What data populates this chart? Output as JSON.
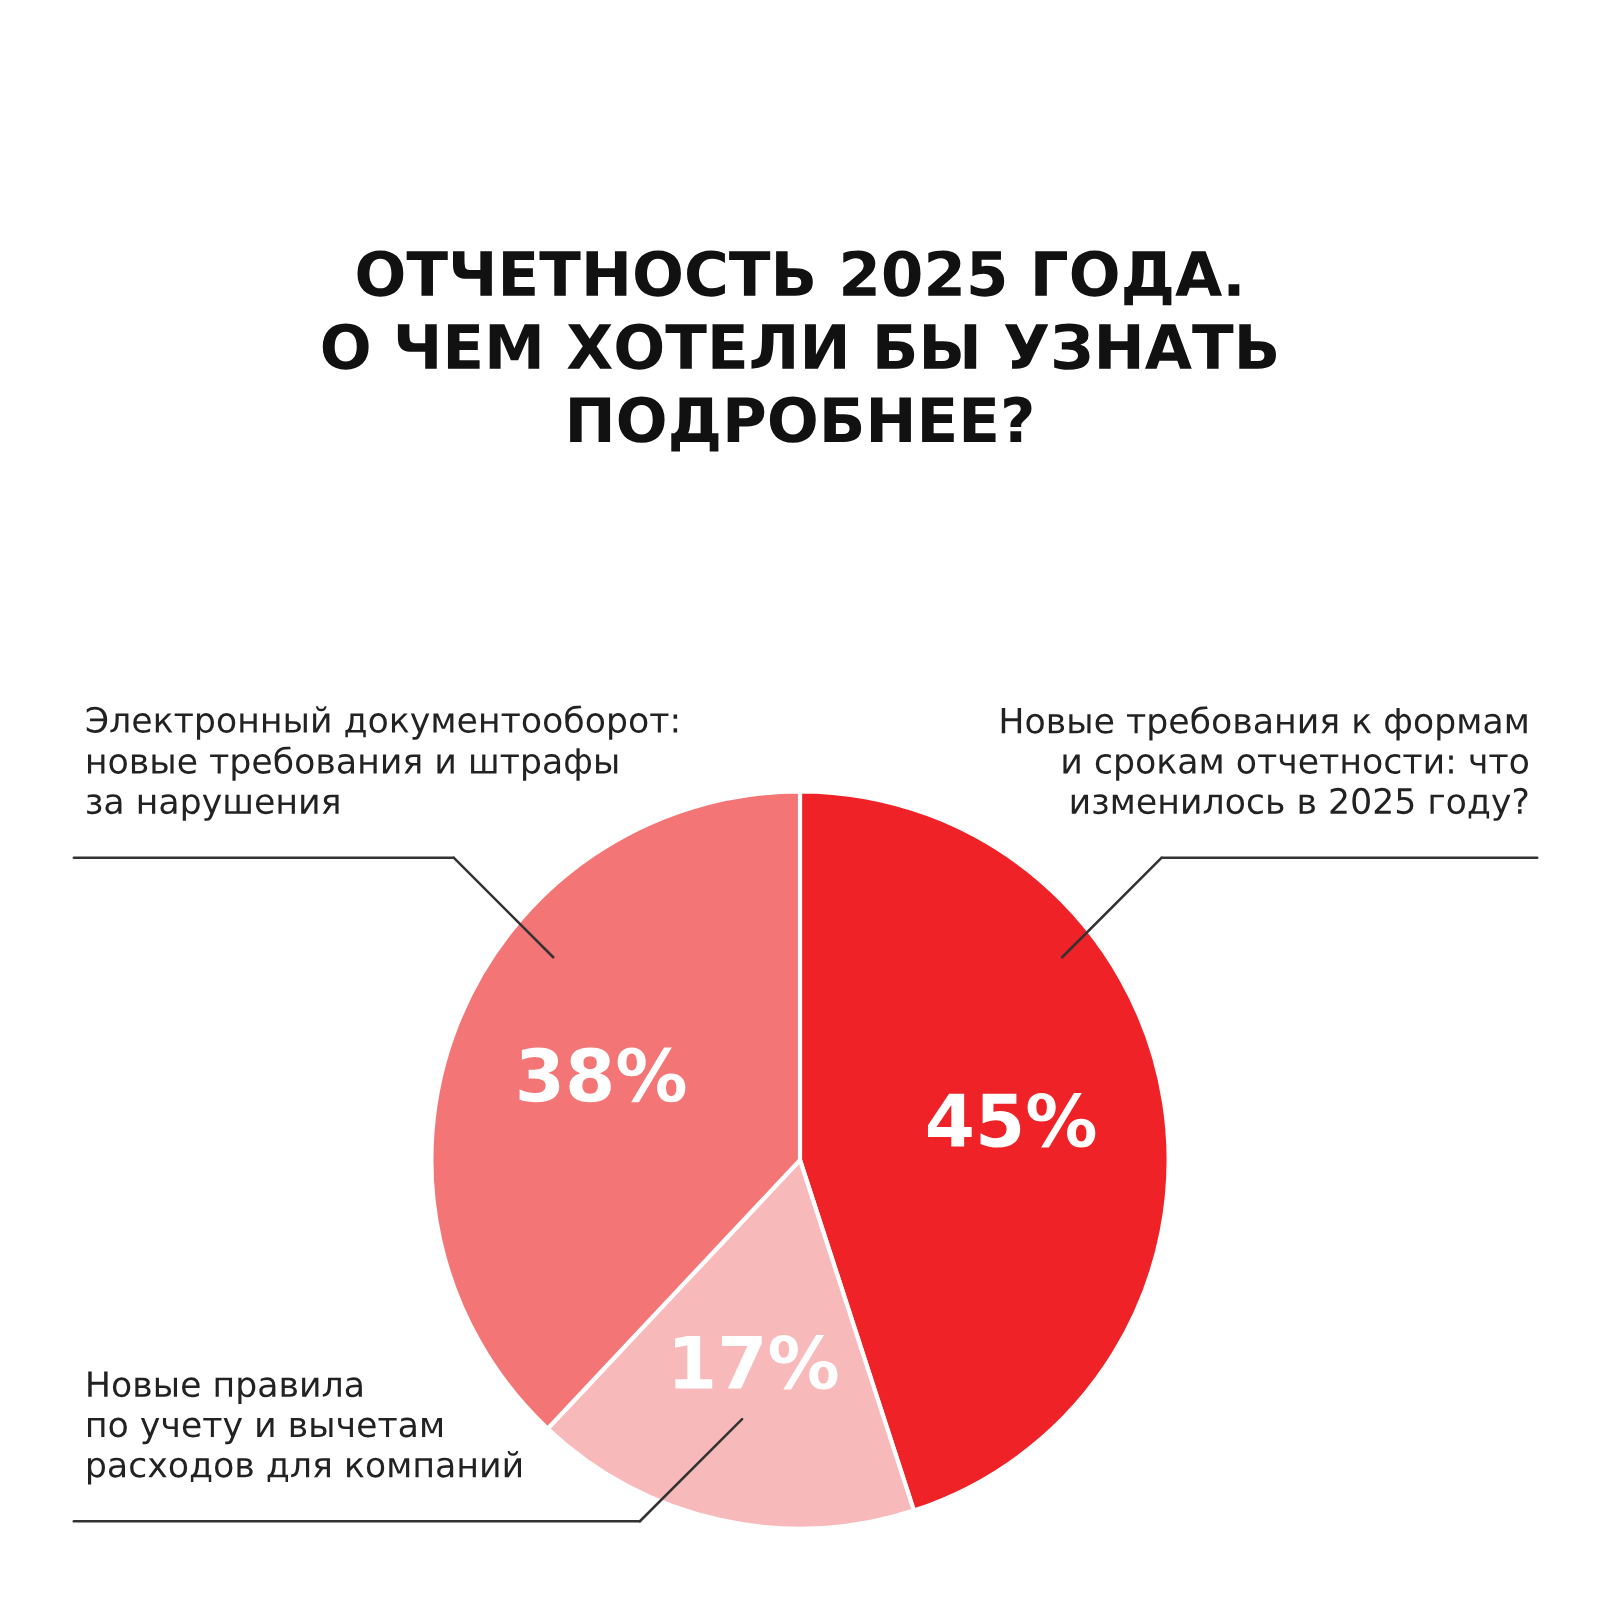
{
  "chart_data": {
    "type": "pie",
    "title": "ОТЧЕТНОСТЬ 2025 ГОДА.\nО ЧЕМ ХОТЕЛИ БЫ УЗНАТЬ\nПОДРОБНЕЕ?",
    "categories": [
      "Новые требования к формам\nи срокам отчетности: что\nизменилось в 2025 году?",
      "Новые правила\nпо учету и вычетам\nрасходов для компаний",
      "Электронный документооборот:\nновые требования и штрафы\nза нарушения"
    ],
    "values": [
      45,
      17,
      38
    ],
    "colors": [
      "#ee2227",
      "#f8b9bb",
      "#f47575"
    ],
    "value_labels": [
      "45%",
      "17%",
      "38%"
    ]
  }
}
